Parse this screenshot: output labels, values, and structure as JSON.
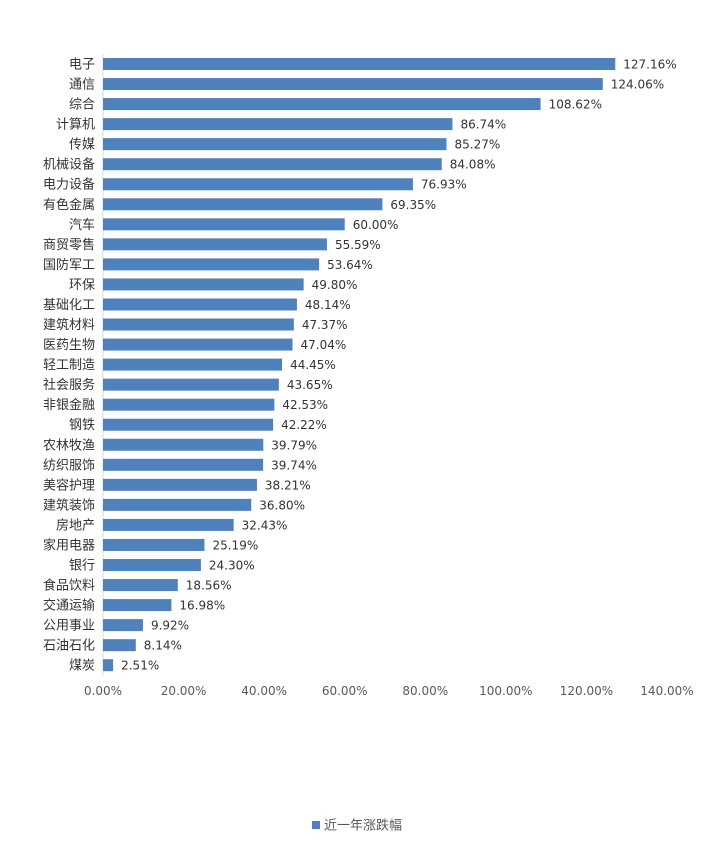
{
  "chart_data": {
    "type": "bar",
    "orientation": "horizontal",
    "categories": [
      "电子",
      "通信",
      "综合",
      "计算机",
      "传媒",
      "机械设备",
      "电力设备",
      "有色金属",
      "汽车",
      "商贸零售",
      "国防军工",
      "环保",
      "基础化工",
      "建筑材料",
      "医药生物",
      "轻工制造",
      "社会服务",
      "非银金融",
      "钢铁",
      "农林牧渔",
      "纺织服饰",
      "美容护理",
      "建筑装饰",
      "房地产",
      "家用电器",
      "银行",
      "食品饮料",
      "交通运输",
      "公用事业",
      "石油石化",
      "煤炭"
    ],
    "series": [
      {
        "name": "近一年涨跌幅",
        "values": [
          127.16,
          124.06,
          108.62,
          86.74,
          85.27,
          84.08,
          76.93,
          69.35,
          60.0,
          55.59,
          53.64,
          49.8,
          48.14,
          47.37,
          47.04,
          44.45,
          43.65,
          42.53,
          42.22,
          39.79,
          39.74,
          38.21,
          36.8,
          32.43,
          25.19,
          24.3,
          18.56,
          16.98,
          9.92,
          8.14,
          2.51
        ],
        "value_labels": [
          "127.16%",
          "124.06%",
          "108.62%",
          "86.74%",
          "85.27%",
          "84.08%",
          "76.93%",
          "69.35%",
          "60.00%",
          "55.59%",
          "53.64%",
          "49.80%",
          "48.14%",
          "47.37%",
          "47.04%",
          "44.45%",
          "43.65%",
          "42.53%",
          "42.22%",
          "39.79%",
          "39.74%",
          "38.21%",
          "36.80%",
          "32.43%",
          "25.19%",
          "24.30%",
          "18.56%",
          "16.98%",
          "9.92%",
          "8.14%",
          "2.51%"
        ],
        "color": "#4f81bd"
      }
    ],
    "xlim": [
      0,
      140
    ],
    "x_ticks": [
      0,
      20,
      40,
      60,
      80,
      100,
      120,
      140
    ],
    "x_tick_labels": [
      "0.00%",
      "20.00%",
      "40.00%",
      "60.00%",
      "80.00%",
      "100.00%",
      "120.00%",
      "140.00%"
    ],
    "grid": false,
    "legend_position": "bottom"
  }
}
